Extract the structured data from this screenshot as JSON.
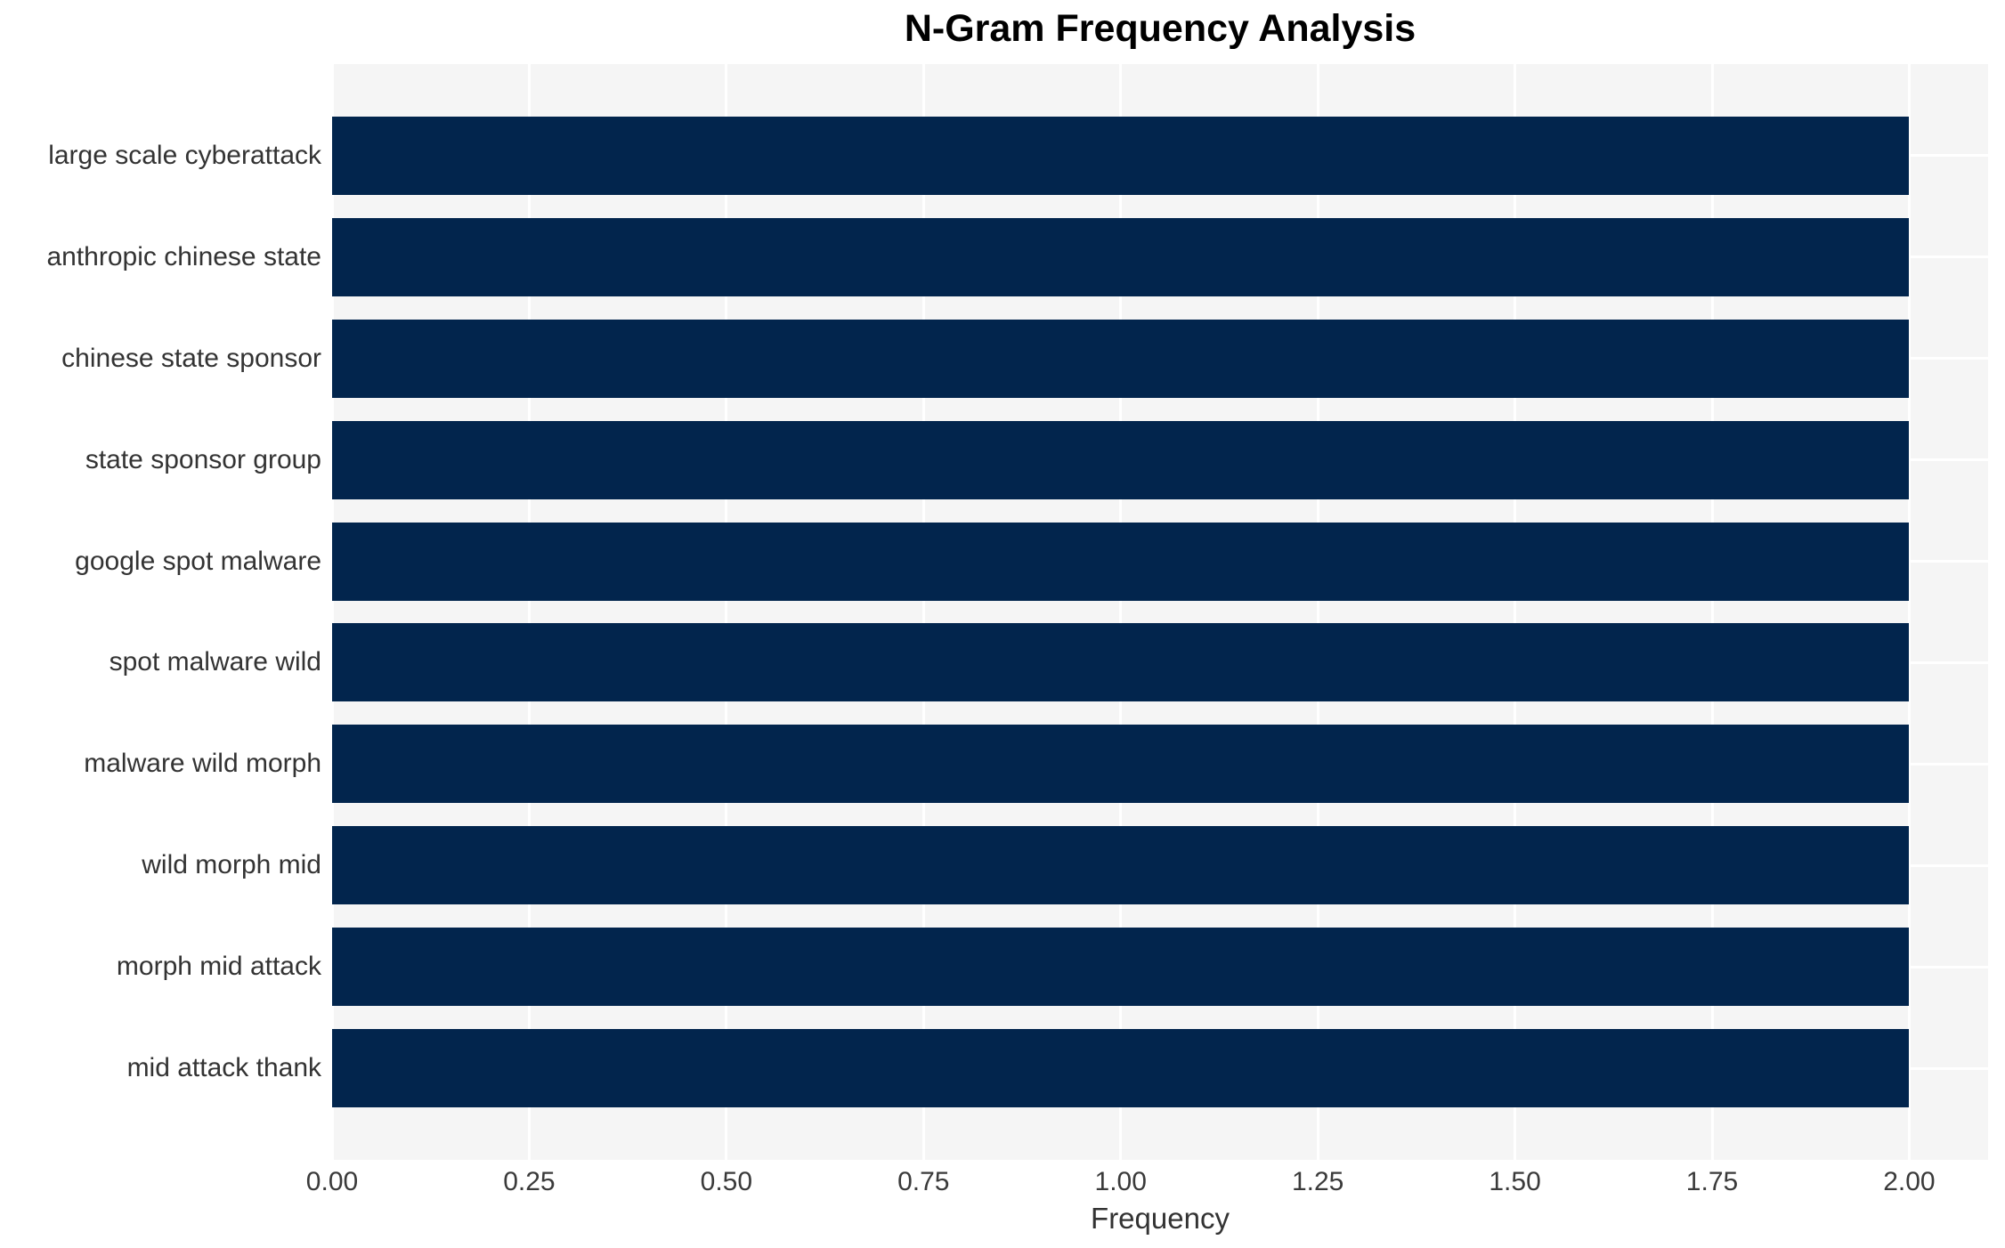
{
  "chart_data": {
    "type": "bar",
    "orientation": "horizontal",
    "title": "N-Gram Frequency Analysis",
    "xlabel": "Frequency",
    "ylabel": "",
    "categories": [
      "large scale cyberattack",
      "anthropic chinese state",
      "chinese state sponsor",
      "state sponsor group",
      "google spot malware",
      "spot malware wild",
      "malware wild morph",
      "wild morph mid",
      "morph mid attack",
      "mid attack thank"
    ],
    "values": [
      2,
      2,
      2,
      2,
      2,
      2,
      2,
      2,
      2,
      2
    ],
    "xticks": [
      0,
      0.25,
      0.5,
      0.75,
      1.0,
      1.25,
      1.5,
      1.75,
      2.0
    ],
    "xtick_labels": [
      "0.00",
      "0.25",
      "0.50",
      "0.75",
      "1.00",
      "1.25",
      "1.50",
      "1.75",
      "2.00"
    ],
    "xlim": [
      0,
      2.1
    ],
    "grid": true,
    "legend": false,
    "colors": {
      "bar": "#02254d",
      "plot_background": "#f5f5f5",
      "grid": "#ffffff",
      "title": "#000000",
      "tick_text": "#3a3a3a",
      "label_text": "#333333"
    }
  }
}
